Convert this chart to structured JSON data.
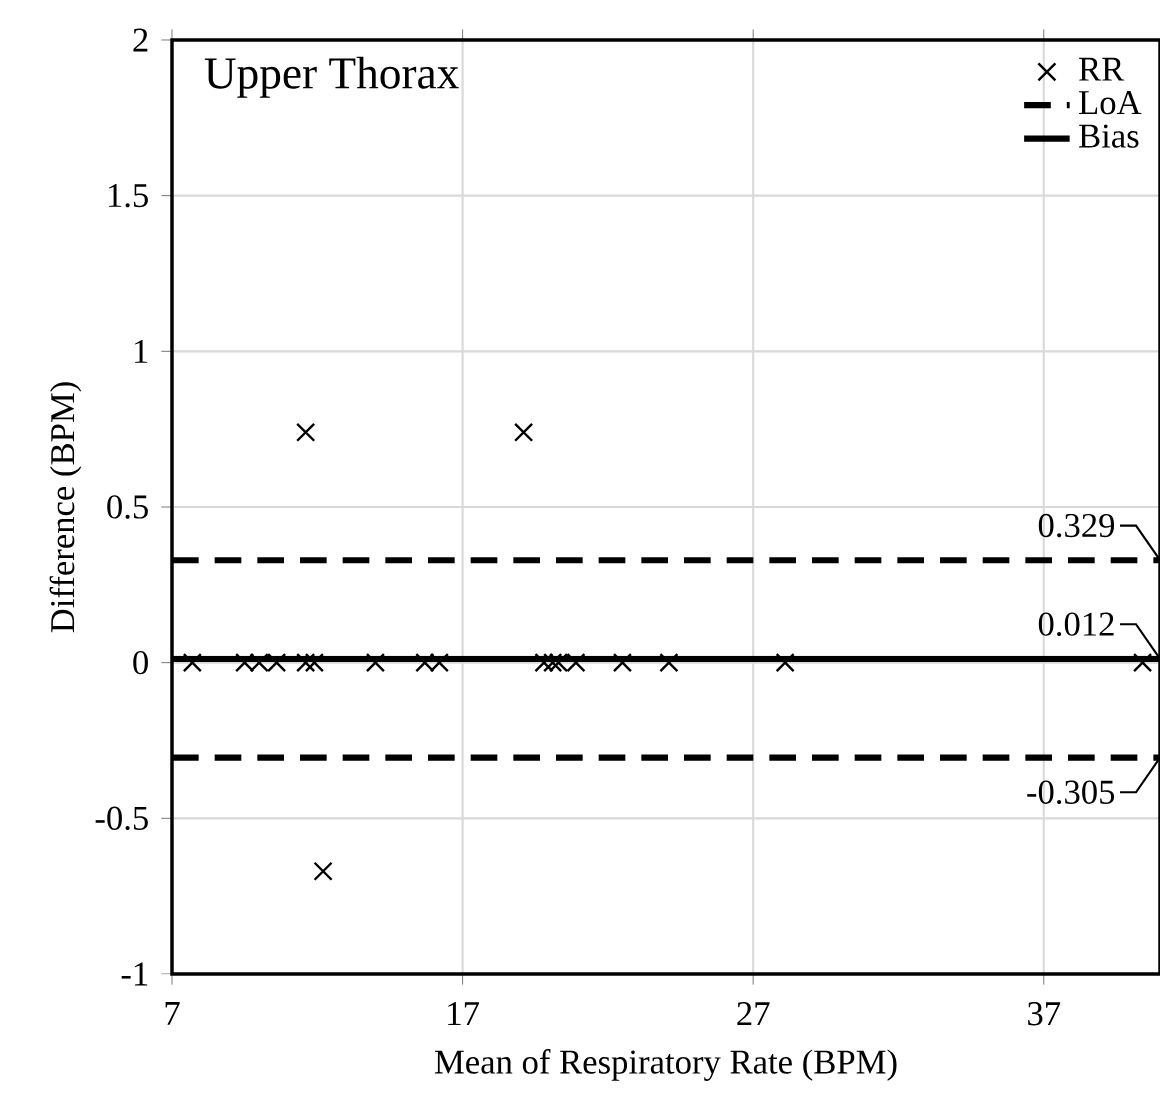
{
  "chart_data": {
    "type": "scatter",
    "title": "Upper Thorax",
    "xlabel": "Mean of Respiratory Rate (BPM)",
    "ylabel": "Difference (BPM)",
    "xlim": [
      7,
      41
    ],
    "xticks": [
      7,
      17,
      27,
      37
    ],
    "ylim": [
      -1,
      2
    ],
    "yticks": [
      -1,
      -0.5,
      0,
      0.5,
      1,
      1.5,
      2
    ],
    "grid": true,
    "legend": "top right",
    "series": [
      {
        "name": "RR",
        "type": "scatter",
        "marker": "cross",
        "color": "#000000",
        "x": [
          7.7,
          9.5,
          10.0,
          10.6,
          11.6,
          11.9,
          14.0,
          15.7,
          16.2,
          19.8,
          20.1,
          20.3,
          20.9,
          22.5,
          24.1,
          28.1,
          40.4,
          11.6,
          19.1,
          12.2
        ],
        "values": [
          0,
          0,
          0,
          0,
          0,
          0,
          0,
          0,
          0,
          0,
          0,
          0,
          0,
          0,
          0,
          0,
          0,
          0.74,
          0.74,
          -0.67
        ]
      },
      {
        "name": "LoA",
        "type": "line",
        "line_style": "dashed",
        "marker": "none",
        "color": "#000000",
        "x": [
          7,
          41
        ],
        "values": [
          0.329,
          0.329
        ]
      },
      {
        "type": "line",
        "line_style": "dashed",
        "marker": "none",
        "color": "#000000",
        "x": [
          7,
          41
        ],
        "values": [
          -0.305,
          -0.305
        ]
      },
      {
        "name": "Bias",
        "type": "line",
        "line_style": "solid",
        "marker": "none",
        "color": "#000000",
        "x": [
          7,
          41
        ],
        "values": [
          0.012,
          0.012
        ]
      }
    ],
    "annotations": [
      {
        "text": "0.329",
        "y": 0.329
      },
      {
        "text": "0.012",
        "y": 0.012
      },
      {
        "text": "-0.305",
        "y": -0.305
      }
    ]
  }
}
